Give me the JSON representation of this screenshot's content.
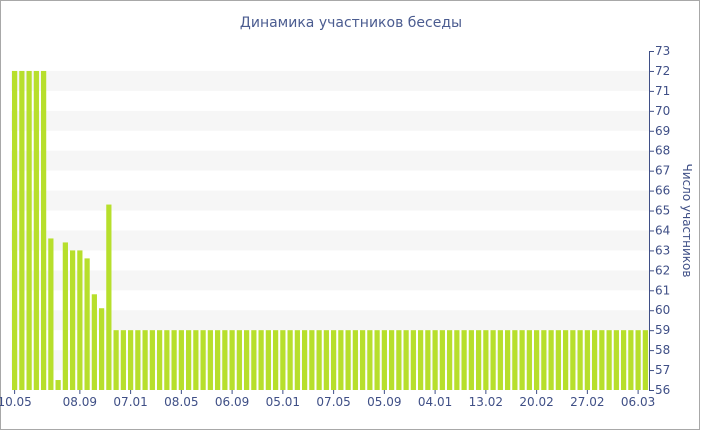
{
  "chart_data": {
    "type": "bar",
    "title": "Динамика участников беседы",
    "ylabel": "Число участников",
    "xlabel": "",
    "ylim": [
      56,
      73
    ],
    "y_ticks": [
      56,
      57,
      58,
      59,
      60,
      61,
      62,
      63,
      64,
      65,
      66,
      67,
      68,
      69,
      70,
      71,
      72,
      73
    ],
    "x_tick_labels": [
      "10.05",
      "08.09",
      "07.01",
      "08.05",
      "06.09",
      "05.01",
      "07.05",
      "05.09",
      "04.01",
      "13.02",
      "20.02",
      "27.02",
      "06.03"
    ],
    "x_tick_bar_index": [
      0,
      9,
      16,
      23,
      30,
      37,
      44,
      51,
      58,
      65,
      72,
      79,
      86
    ],
    "values": [
      72,
      72,
      72,
      72,
      72,
      63.6,
      56.5,
      63.4,
      63.0,
      63.0,
      62.6,
      60.8,
      60.1,
      65.3,
      59,
      59,
      59,
      59,
      59,
      59,
      59,
      59,
      59,
      59,
      59,
      59,
      59,
      59,
      59,
      59,
      59,
      59,
      59,
      59,
      59,
      59,
      59,
      59,
      59,
      59,
      59,
      59,
      59,
      59,
      59,
      59,
      59,
      59,
      59,
      59,
      59,
      59,
      59,
      59,
      59,
      59,
      59,
      59,
      59,
      59,
      59,
      59,
      59,
      59,
      59,
      59,
      59,
      59,
      59,
      59,
      59,
      59,
      59,
      59,
      59,
      59,
      59,
      59,
      59,
      59,
      59,
      59,
      59,
      59,
      59,
      59,
      59,
      59
    ],
    "bar_color": "#b7df2c",
    "band_color": "#f6f6f6",
    "axis_color": "#3f4f86",
    "grid": "alternating horizontal bands",
    "y_axis_side": "right",
    "legend": "none"
  }
}
